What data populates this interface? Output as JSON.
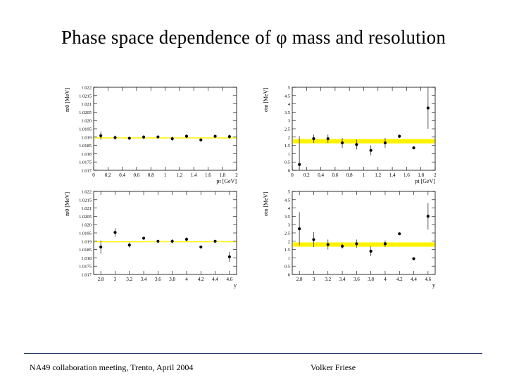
{
  "slide": {
    "title": "Phase space dependence of φ mass and resolution",
    "footer_left": "NA49 collaboration meeting, Trento, April 2004",
    "footer_right": "Volker Friese"
  },
  "colors": {
    "band": "#fff200",
    "marker": "#000000",
    "axis": "#000000"
  },
  "chart_data": [
    {
      "type": "scatter",
      "ylabel": "m0 [MeV]",
      "xlabel": "pt [GeV]",
      "ylim": [
        1.017,
        1.022
      ],
      "xlim": [
        0,
        2
      ],
      "ytick_labels": [
        "1.017",
        "1.0175",
        "1.018",
        "1.0185",
        "1.019",
        "1.0195",
        "1.020",
        "1.0205",
        "1.021",
        "1.0215",
        "1.022"
      ],
      "yticks": [
        1.017,
        1.0175,
        1.018,
        1.0185,
        1.019,
        1.0195,
        1.02,
        1.0205,
        1.021,
        1.0215,
        1.022
      ],
      "xtick_labels": [
        "0",
        "0.2",
        "0.4",
        "0.6",
        "0.8",
        "1",
        "1.2",
        "1.4",
        "1.6",
        "1.8",
        "2"
      ],
      "xticks": [
        0,
        0.2,
        0.4,
        0.6,
        0.8,
        1,
        1.2,
        1.4,
        1.6,
        1.8,
        2
      ],
      "points": [
        {
          "x": 0.1,
          "y": 1.01908,
          "err": 0.00025
        },
        {
          "x": 0.3,
          "y": 1.01897,
          "err": 0.00012
        },
        {
          "x": 0.5,
          "y": 1.01893,
          "err": 8e-05
        },
        {
          "x": 0.7,
          "y": 1.019,
          "err": 0.00012
        },
        {
          "x": 0.9,
          "y": 1.01901,
          "err": 9e-05
        },
        {
          "x": 1.1,
          "y": 1.0189,
          "err": 0.00012
        },
        {
          "x": 1.3,
          "y": 1.01905,
          "err": 0.00011
        },
        {
          "x": 1.5,
          "y": 1.01883,
          "err": 3e-05
        },
        {
          "x": 1.7,
          "y": 1.01905,
          "err": 4e-05
        },
        {
          "x": 1.9,
          "y": 1.01903,
          "err": 0.00012
        }
      ],
      "band": {
        "center": 1.01895,
        "half_width": 2e-05
      }
    },
    {
      "type": "scatter",
      "ylabel": "σm [MeV]",
      "xlabel": "pt [GeV]",
      "ylim": [
        0,
        5
      ],
      "xlim": [
        0,
        2
      ],
      "ytick_labels": [
        "0",
        "0.5",
        "1",
        "1.5",
        "2",
        "2.5",
        "3",
        "3.5",
        "4",
        "4.5",
        "5"
      ],
      "yticks": [
        0,
        0.5,
        1,
        1.5,
        2,
        2.5,
        3,
        3.5,
        4,
        4.5,
        5
      ],
      "xtick_labels": [
        "0",
        "0.2",
        "0.4",
        "0.6",
        "0.8",
        "1",
        "1.2",
        "1.4",
        "1.6",
        "1.8",
        "2"
      ],
      "xticks": [
        0,
        0.2,
        0.4,
        0.6,
        0.8,
        1,
        1.2,
        1.4,
        1.6,
        1.8,
        2
      ],
      "points": [
        {
          "x": 0.1,
          "y": 0.35,
          "err": 1.7
        },
        {
          "x": 0.3,
          "y": 1.9,
          "err": 0.25
        },
        {
          "x": 0.5,
          "y": 1.9,
          "err": 0.25
        },
        {
          "x": 0.7,
          "y": 1.65,
          "err": 0.3
        },
        {
          "x": 0.9,
          "y": 1.55,
          "err": 0.3
        },
        {
          "x": 1.1,
          "y": 1.2,
          "err": 0.3
        },
        {
          "x": 1.3,
          "y": 1.65,
          "err": 0.3
        },
        {
          "x": 1.5,
          "y": 2.05,
          "err": 0.1
        },
        {
          "x": 1.7,
          "y": 1.35,
          "err": 0.05
        },
        {
          "x": 1.9,
          "y": 3.75,
          "err": 1.25
        }
      ],
      "band": {
        "center": 1.75,
        "half_width": 0.13
      }
    },
    {
      "type": "scatter",
      "ylabel": "m0 [MeV]",
      "xlabel": "y",
      "ylim": [
        1.017,
        1.022
      ],
      "xlim": [
        2.7,
        4.7
      ],
      "ytick_labels": [
        "1.017",
        "1.0175",
        "1.018",
        "1.0185",
        "1.019",
        "1.0195",
        "1.020",
        "1.0205",
        "1.021",
        "1.0215",
        "1.022"
      ],
      "yticks": [
        1.017,
        1.0175,
        1.018,
        1.0185,
        1.019,
        1.0195,
        1.02,
        1.0205,
        1.021,
        1.0215,
        1.022
      ],
      "xtick_labels": [
        "2.8",
        "3",
        "3.2",
        "3.4",
        "3.6",
        "3.8",
        "4",
        "4.2",
        "4.4",
        "4.6"
      ],
      "xticks": [
        2.8,
        3.0,
        3.2,
        3.4,
        3.6,
        3.8,
        4.0,
        4.2,
        4.4,
        4.6
      ],
      "points": [
        {
          "x": 2.8,
          "y": 1.01865,
          "err": 0.0004
        },
        {
          "x": 3.0,
          "y": 1.01953,
          "err": 0.00025
        },
        {
          "x": 3.2,
          "y": 1.01877,
          "err": 0.00015
        },
        {
          "x": 3.4,
          "y": 1.01918,
          "err": 5e-05
        },
        {
          "x": 3.6,
          "y": 1.019,
          "err": 6e-05
        },
        {
          "x": 3.8,
          "y": 1.019,
          "err": 0.00012
        },
        {
          "x": 4.0,
          "y": 1.01912,
          "err": 0.00011
        },
        {
          "x": 4.2,
          "y": 1.01865,
          "err": 3e-05
        },
        {
          "x": 4.4,
          "y": 1.019,
          "err": 4e-05
        },
        {
          "x": 4.6,
          "y": 1.01806,
          "err": 0.0003
        }
      ],
      "band": {
        "center": 1.01897,
        "half_width": 2e-05
      }
    },
    {
      "type": "scatter",
      "ylabel": "σm [MeV]",
      "xlabel": "y",
      "ylim": [
        0,
        5
      ],
      "xlim": [
        2.7,
        4.7
      ],
      "ytick_labels": [
        "0",
        "0.5",
        "1",
        "1.5",
        "2",
        "2.5",
        "3",
        "3.5",
        "4",
        "4.5",
        "5"
      ],
      "yticks": [
        0,
        0.5,
        1,
        1.5,
        2,
        2.5,
        3,
        3.5,
        4,
        4.5,
        5
      ],
      "xtick_labels": [
        "2.8",
        "3",
        "3.2",
        "3.4",
        "3.6",
        "3.8",
        "4",
        "4.2",
        "4.4",
        "4.6"
      ],
      "xticks": [
        2.8,
        3.0,
        3.2,
        3.4,
        3.6,
        3.8,
        4.0,
        4.2,
        4.4,
        4.6
      ],
      "points": [
        {
          "x": 2.8,
          "y": 2.75,
          "err": 1.0
        },
        {
          "x": 3.0,
          "y": 2.1,
          "err": 0.45
        },
        {
          "x": 3.2,
          "y": 1.8,
          "err": 0.3
        },
        {
          "x": 3.4,
          "y": 1.7,
          "err": 0.15
        },
        {
          "x": 3.6,
          "y": 1.85,
          "err": 0.25
        },
        {
          "x": 3.8,
          "y": 1.4,
          "err": 0.3
        },
        {
          "x": 4.0,
          "y": 1.85,
          "err": 0.2
        },
        {
          "x": 4.2,
          "y": 2.45,
          "err": 0.05
        },
        {
          "x": 4.4,
          "y": 0.95,
          "err": 0.05
        },
        {
          "x": 4.6,
          "y": 3.5,
          "err": 0.8
        }
      ],
      "band": {
        "center": 1.8,
        "half_width": 0.13
      }
    }
  ]
}
